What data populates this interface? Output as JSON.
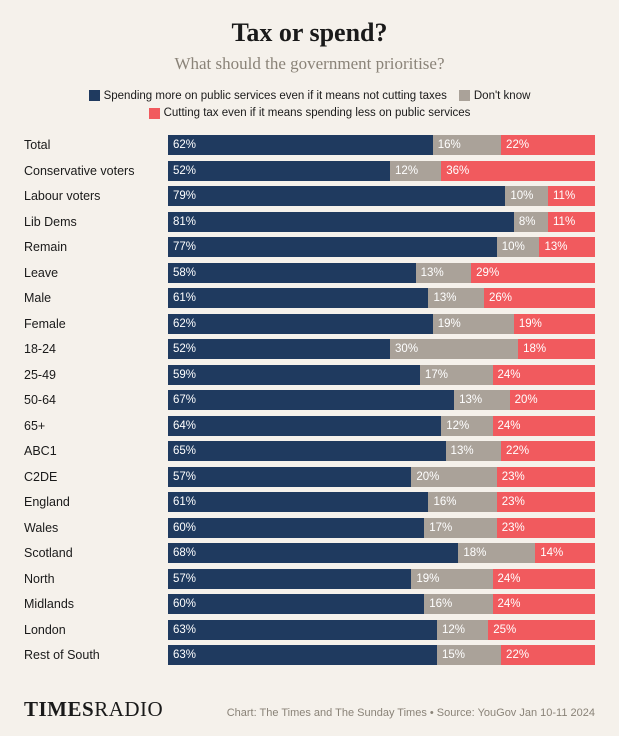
{
  "title": "Tax or spend?",
  "subtitle": "What should the government prioritise?",
  "legend": [
    {
      "label": "Spending more on public services even if it means not cutting taxes",
      "color": "#1f3a5f"
    },
    {
      "label": "Don't know",
      "color": "#aaa299"
    },
    {
      "label": "Cutting tax even if it means spending less on public services",
      "color": "#f15a5e"
    }
  ],
  "series_colors": [
    "#1f3a5f",
    "#aaa299",
    "#f15a5e"
  ],
  "background_color": "#f5f1eb",
  "rows": [
    {
      "label": "Total",
      "values": [
        62,
        16,
        22
      ]
    },
    {
      "label": "Conservative voters",
      "values": [
        52,
        12,
        36
      ]
    },
    {
      "label": "Labour voters",
      "values": [
        79,
        10,
        11
      ]
    },
    {
      "label": "Lib Dems",
      "values": [
        81,
        8,
        11
      ]
    },
    {
      "label": "Remain",
      "values": [
        77,
        10,
        13
      ]
    },
    {
      "label": "Leave",
      "values": [
        58,
        13,
        29
      ]
    },
    {
      "label": "Male",
      "values": [
        61,
        13,
        26
      ]
    },
    {
      "label": "Female",
      "values": [
        62,
        19,
        19
      ]
    },
    {
      "label": "18-24",
      "values": [
        52,
        30,
        18
      ]
    },
    {
      "label": "25-49",
      "values": [
        59,
        17,
        24
      ]
    },
    {
      "label": "50-64",
      "values": [
        67,
        13,
        20
      ]
    },
    {
      "label": "65+",
      "values": [
        64,
        12,
        24
      ]
    },
    {
      "label": "ABC1",
      "values": [
        65,
        13,
        22
      ]
    },
    {
      "label": "C2DE",
      "values": [
        57,
        20,
        23
      ]
    },
    {
      "label": "England",
      "values": [
        61,
        16,
        23
      ]
    },
    {
      "label": "Wales",
      "values": [
        60,
        17,
        23
      ]
    },
    {
      "label": "Scotland",
      "values": [
        68,
        18,
        14
      ]
    },
    {
      "label": "North",
      "values": [
        57,
        19,
        24
      ]
    },
    {
      "label": "Midlands",
      "values": [
        60,
        16,
        24
      ]
    },
    {
      "label": "London",
      "values": [
        63,
        12,
        25
      ]
    },
    {
      "label": "Rest of South",
      "values": [
        63,
        15,
        22
      ]
    }
  ],
  "brand": {
    "part1": "TIMES",
    "part2": "RADIO"
  },
  "credit": "Chart: The Times and The Sunday Times • Source: YouGov Jan 10-11 2024"
}
